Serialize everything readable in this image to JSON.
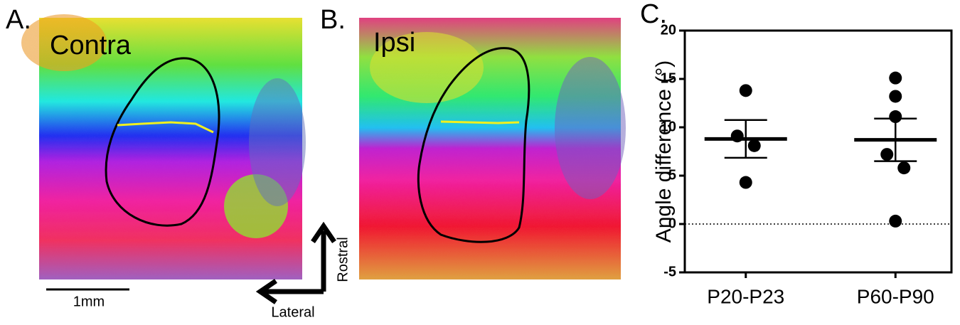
{
  "panels": {
    "a": {
      "letter": "A.",
      "label": "Contra"
    },
    "b": {
      "letter": "B.",
      "label": "Ipsi"
    },
    "scale_bar": "1mm",
    "compass": {
      "up": "Rostral",
      "left": "Lateral"
    },
    "c": {
      "letter": "C."
    }
  },
  "chart_data": {
    "type": "scatter",
    "y_label": "Angle difference (°)",
    "categories": [
      "P20-P23",
      "P60-P90"
    ],
    "series": [
      {
        "values": [
          13.8,
          9.1,
          8.1,
          4.3
        ],
        "mean": 8.8,
        "error": 1.95,
        "color": "#000000"
      },
      {
        "values": [
          15.1,
          13.2,
          11.1,
          7.2,
          5.8,
          0.3
        ],
        "mean": 8.7,
        "error": 2.2,
        "color": "#000000"
      }
    ],
    "reference_line": 0,
    "ylim": [
      -5,
      20
    ],
    "yticks": [
      -5,
      0,
      5,
      10,
      15,
      20
    ]
  }
}
